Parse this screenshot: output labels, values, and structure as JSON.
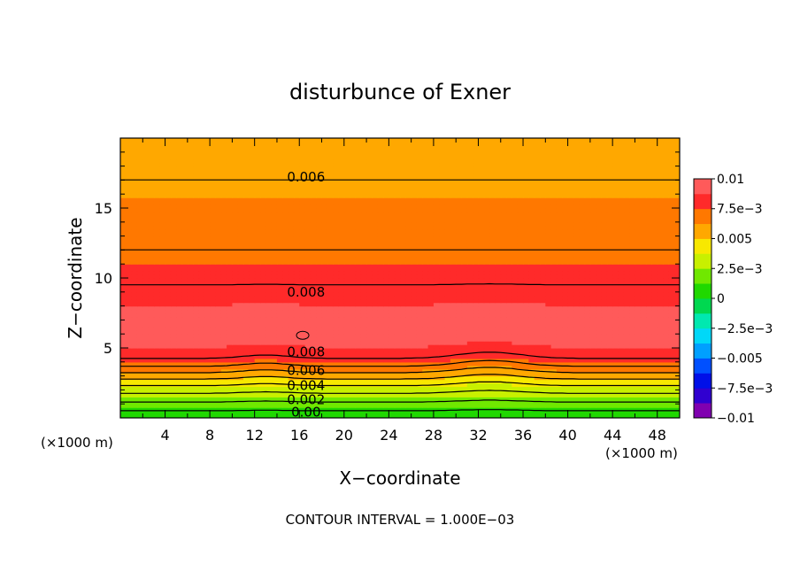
{
  "chart_data": {
    "type": "heatmap",
    "title": "disturbunce of Exner",
    "xlabel": "X−coordinate",
    "ylabel": "Z−coordinate",
    "x_unit": "(×1000 m)",
    "x_unit_bottom": "(×1000 m)",
    "xlim": [
      0,
      50
    ],
    "ylim": [
      0,
      20
    ],
    "x_ticks": [
      4,
      8,
      12,
      16,
      20,
      24,
      28,
      32,
      36,
      40,
      44,
      48
    ],
    "y_ticks": [
      5,
      10,
      15
    ],
    "colorbar": {
      "vmin": -0.01,
      "vmax": 0.01,
      "labels": [
        {
          "value": 0.01,
          "text": "0.01"
        },
        {
          "value": 0.0075,
          "text": "7.5e−3"
        },
        {
          "value": 0.005,
          "text": "0.005"
        },
        {
          "value": 0.0025,
          "text": "2.5e−3"
        },
        {
          "value": 0,
          "text": "0"
        },
        {
          "value": -0.0025,
          "text": "−2.5e−3"
        },
        {
          "value": -0.005,
          "text": "−0.005"
        },
        {
          "value": -0.0075,
          "text": "−7.5e−3"
        },
        {
          "value": -0.01,
          "text": "−0.01"
        }
      ]
    },
    "contour_interval": 0.001,
    "contour_labels": [
      {
        "text": "0.006",
        "x": 16.6,
        "z": 17.2
      },
      {
        "text": "0.008",
        "x": 16.6,
        "z": 9.0
      },
      {
        "text": "0.008",
        "x": 16.6,
        "z": 4.7
      },
      {
        "text": "0.006",
        "x": 16.6,
        "z": 3.4
      },
      {
        "text": "0.004",
        "x": 16.6,
        "z": 2.3
      },
      {
        "text": "0.002",
        "x": 16.6,
        "z": 1.3
      },
      {
        "text": "0.00",
        "x": 16.6,
        "z": 0.4
      }
    ],
    "profile": {
      "z": [
        0,
        0.5,
        1,
        1.5,
        2,
        2.5,
        3,
        3.5,
        4,
        4.5,
        5,
        5.5,
        6,
        7,
        8,
        9,
        10,
        11,
        12,
        13,
        14,
        15,
        16,
        17,
        18,
        19,
        20
      ],
      "value": [
        0.0,
        0.001,
        0.0018,
        0.0026,
        0.0034,
        0.0044,
        0.0055,
        0.0066,
        0.0077,
        0.0083,
        0.0087,
        0.0092,
        0.0096,
        0.0095,
        0.0088,
        0.0082,
        0.0078,
        0.0075,
        0.0072,
        0.0068,
        0.0066,
        0.0064,
        0.0062,
        0.006,
        0.0057,
        0.0054,
        0.005
      ]
    }
  },
  "footer": {
    "contour_interval_text": "CONTOUR INTERVAL = 1.000E−03"
  }
}
